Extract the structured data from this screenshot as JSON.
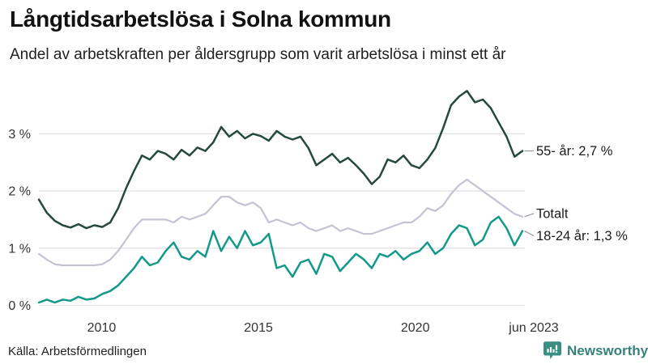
{
  "header": {
    "title": "Långtidsarbetslösa i Solna kommun",
    "subtitle": "Andel av arbetskraften per åldersgrupp som varit arbetslösa i minst ett år"
  },
  "footer": {
    "source": "Källa: Arbetsförmedlingen",
    "brand": "Newsworthy"
  },
  "colors": {
    "series_55": "#25493f",
    "series_total": "#c5c2d3",
    "series_youth": "#12998a",
    "grid": "#e1e1e6",
    "tick_text": "#333333",
    "annotation_text": "#1a1a1a",
    "connector": "#999999",
    "brand_teal": "#3a8f85"
  },
  "chart_data": {
    "type": "line",
    "title": "Långtidsarbetslösa i Solna kommun",
    "subtitle": "Andel av arbetskraften per åldersgrupp som varit arbetslösa i minst ett år",
    "unit": "%",
    "x_start": 2008.0,
    "x_end": 2023.417,
    "xlabel": "",
    "ylabel": "",
    "ylim": [
      0,
      3.85
    ],
    "grid": true,
    "legend_position": "end-of-line-annotations",
    "xticks": [
      {
        "value": 2010,
        "label": "2010"
      },
      {
        "value": 2015,
        "label": "2015"
      },
      {
        "value": 2020,
        "label": "2020"
      },
      {
        "value": 2023.417,
        "label": "jun 2023"
      }
    ],
    "yticks": [
      {
        "value": 0,
        "label": "0 %"
      },
      {
        "value": 1,
        "label": "1 %"
      },
      {
        "value": 2,
        "label": "2 %"
      },
      {
        "value": 3,
        "label": "3 %"
      }
    ],
    "series": [
      {
        "name": "Totalt",
        "annotation": "Totalt",
        "end_value": 1.55,
        "color": "#c5c2d3",
        "values": [
          0.9,
          0.8,
          0.72,
          0.7,
          0.7,
          0.7,
          0.7,
          0.7,
          0.72,
          0.8,
          0.95,
          1.15,
          1.35,
          1.5,
          1.5,
          1.5,
          1.5,
          1.45,
          1.55,
          1.5,
          1.55,
          1.6,
          1.75,
          1.9,
          1.9,
          1.8,
          1.75,
          1.8,
          1.7,
          1.45,
          1.5,
          1.45,
          1.4,
          1.45,
          1.35,
          1.3,
          1.35,
          1.4,
          1.3,
          1.35,
          1.3,
          1.25,
          1.25,
          1.3,
          1.35,
          1.4,
          1.45,
          1.45,
          1.55,
          1.7,
          1.65,
          1.75,
          1.95,
          2.1,
          2.2,
          2.1,
          2.0,
          1.9,
          1.8,
          1.7,
          1.6,
          1.55
        ]
      },
      {
        "name": "55- år",
        "annotation": "55- år: 2,7 %",
        "end_value": 2.7,
        "color": "#25493f",
        "values": [
          1.85,
          1.62,
          1.48,
          1.4,
          1.36,
          1.42,
          1.35,
          1.4,
          1.37,
          1.45,
          1.7,
          2.05,
          2.35,
          2.62,
          2.55,
          2.7,
          2.65,
          2.55,
          2.72,
          2.62,
          2.76,
          2.7,
          2.85,
          3.12,
          2.95,
          3.05,
          2.92,
          3.0,
          2.96,
          2.88,
          3.05,
          2.95,
          2.9,
          2.95,
          2.75,
          2.45,
          2.55,
          2.65,
          2.5,
          2.58,
          2.45,
          2.3,
          2.12,
          2.25,
          2.55,
          2.5,
          2.62,
          2.45,
          2.4,
          2.55,
          2.75,
          3.1,
          3.5,
          3.65,
          3.75,
          3.55,
          3.6,
          3.45,
          3.2,
          2.95,
          2.6,
          2.7
        ]
      },
      {
        "name": "18-24 år",
        "annotation": "18-24 år: 1,3 %",
        "end_value": 1.3,
        "color": "#12998a",
        "values": [
          0.05,
          0.1,
          0.05,
          0.1,
          0.08,
          0.15,
          0.1,
          0.12,
          0.2,
          0.25,
          0.35,
          0.5,
          0.65,
          0.85,
          0.7,
          0.75,
          0.95,
          1.1,
          0.85,
          0.8,
          0.95,
          0.85,
          1.3,
          0.95,
          1.2,
          1.0,
          1.3,
          1.05,
          1.1,
          1.25,
          0.65,
          0.7,
          0.5,
          0.75,
          0.8,
          0.55,
          0.9,
          0.85,
          0.6,
          0.75,
          0.9,
          0.8,
          0.65,
          0.9,
          0.85,
          0.95,
          0.8,
          0.9,
          0.95,
          1.1,
          0.9,
          1.0,
          1.25,
          1.4,
          1.35,
          1.05,
          1.15,
          1.45,
          1.55,
          1.35,
          1.05,
          1.3
        ]
      }
    ]
  }
}
